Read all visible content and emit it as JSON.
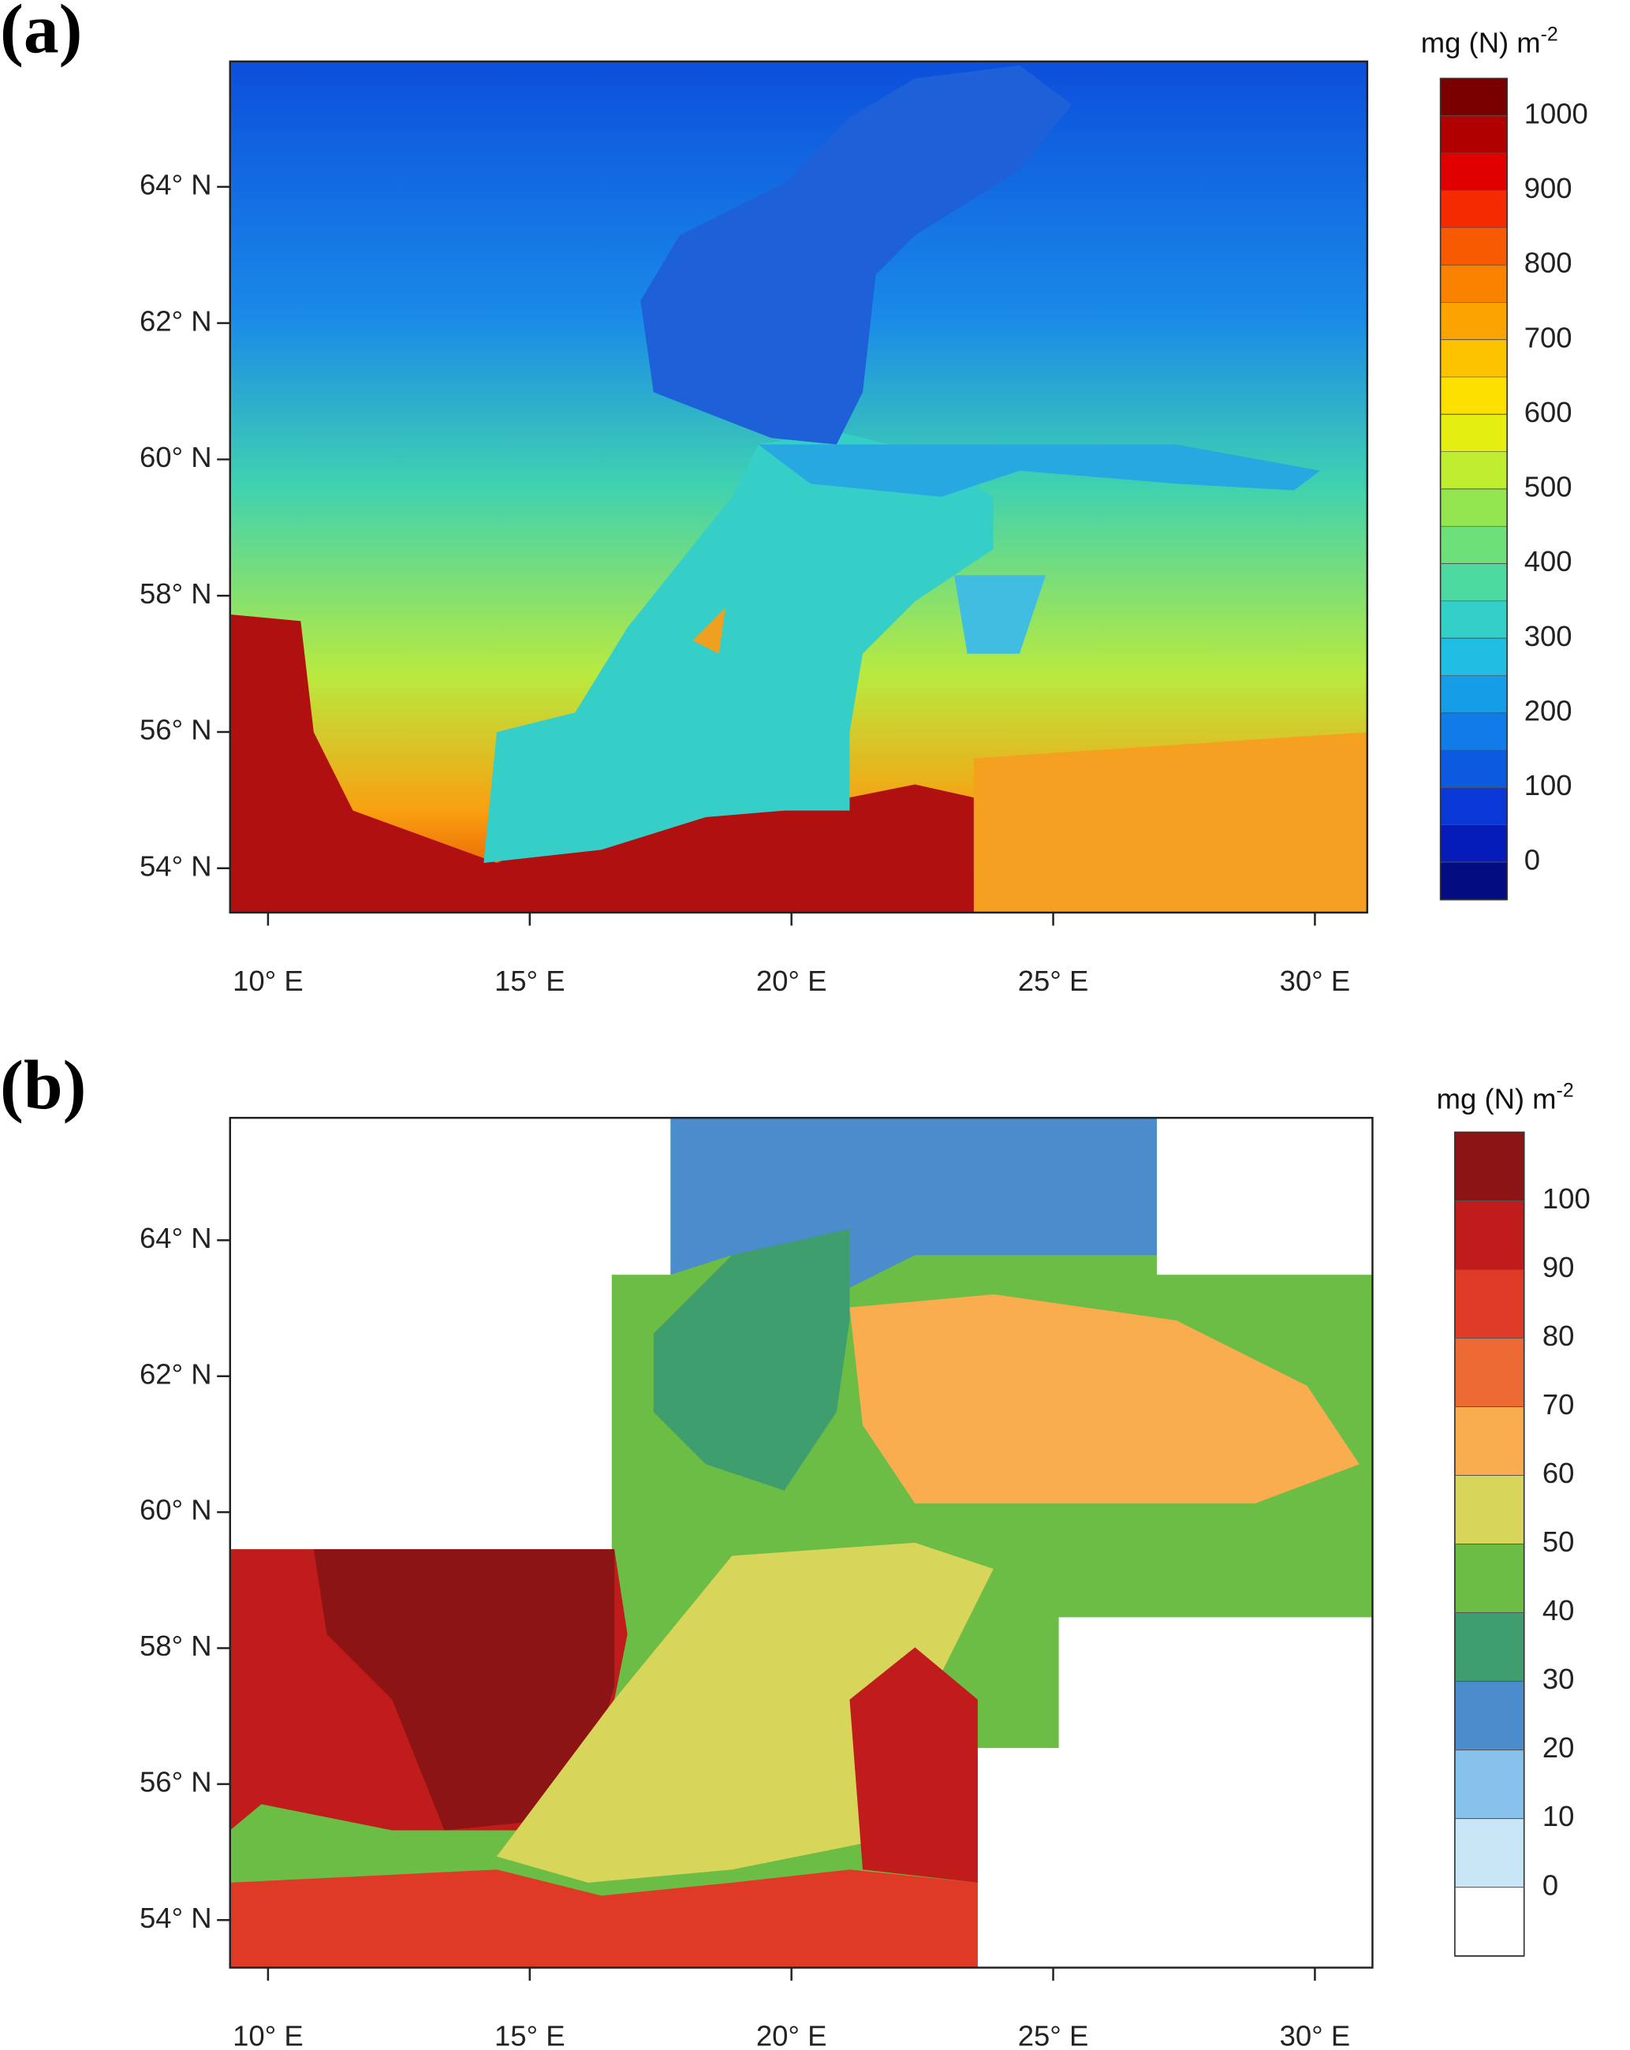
{
  "panels": [
    {
      "label": "(a)",
      "colorbar": {
        "title": "mg (N) m",
        "title_exponent": "-2",
        "clim": [
          -50,
          1050
        ],
        "ticks": [
          0,
          100,
          200,
          300,
          400,
          500,
          600,
          700,
          800,
          900,
          1000
        ],
        "colors": [
          "#7a0000",
          "#b00000",
          "#e00000",
          "#f52a00",
          "#f75a00",
          "#f98200",
          "#fba300",
          "#fdc300",
          "#fbe000",
          "#e4ee10",
          "#bfee30",
          "#93e650",
          "#6ee07a",
          "#4cdaa0",
          "#33d0c8",
          "#22bde2",
          "#159de8",
          "#0f7ce8",
          "#0c5ae0",
          "#0a38d6",
          "#061cb8",
          "#030c80"
        ]
      },
      "lat_ticks": [
        {
          "value": 54,
          "label": "54° N"
        },
        {
          "value": 56,
          "label": "56° N"
        },
        {
          "value": 58,
          "label": "58° N"
        },
        {
          "value": 60,
          "label": "60° N"
        },
        {
          "value": 62,
          "label": "62° N"
        },
        {
          "value": 64,
          "label": "64° N"
        }
      ],
      "lon_ticks": [
        {
          "value": 10,
          "label": "10° E"
        },
        {
          "value": 15,
          "label": "15° E"
        },
        {
          "value": 20,
          "label": "20° E"
        },
        {
          "value": 25,
          "label": "25° E"
        },
        {
          "value": 30,
          "label": "30° E"
        }
      ],
      "xlim": [
        9.275,
        31.0
      ],
      "ylim": [
        53.35,
        65.84
      ]
    },
    {
      "label": "(b)",
      "colorbar": {
        "title": "mg (N) m",
        "title_exponent": "-2",
        "clim": [
          -10,
          110
        ],
        "ticks": [
          0,
          10,
          20,
          30,
          40,
          50,
          60,
          70,
          80,
          90,
          100
        ],
        "colors": [
          "#8c1414",
          "#c01c1c",
          "#de3a26",
          "#ee6a34",
          "#f9ad4e",
          "#d8d65a",
          "#6cbd46",
          "#3e9e6e",
          "#4a8ccc",
          "#86c2ec",
          "#c8e6f6",
          "#ffffff"
        ]
      },
      "lat_ticks": [
        {
          "value": 54,
          "label": "54° N"
        },
        {
          "value": 56,
          "label": "56° N"
        },
        {
          "value": 58,
          "label": "58° N"
        },
        {
          "value": 60,
          "label": "60° N"
        },
        {
          "value": 62,
          "label": "62° N"
        },
        {
          "value": 64,
          "label": "64° N"
        }
      ],
      "lon_ticks": [
        {
          "value": 10,
          "label": "10° E"
        },
        {
          "value": 15,
          "label": "15° E"
        },
        {
          "value": 20,
          "label": "20° E"
        },
        {
          "value": 25,
          "label": "25° E"
        },
        {
          "value": 30,
          "label": "30° E"
        }
      ],
      "xlim": [
        9.275,
        31.1
      ],
      "ylim": [
        53.3,
        65.8
      ]
    }
  ]
}
